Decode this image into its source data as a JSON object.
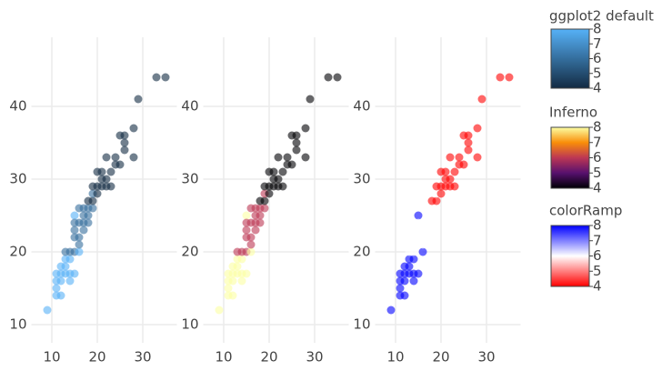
{
  "chart_data": [
    {
      "type": "scatter",
      "clim": [
        4,
        8
      ],
      "x": [
        9,
        11,
        11,
        11,
        12,
        12,
        12,
        13,
        13,
        13,
        14,
        14,
        14,
        15,
        15,
        15,
        15,
        16,
        16,
        16,
        17,
        17,
        17,
        18,
        18,
        18,
        19,
        19,
        19,
        19,
        20,
        20,
        20,
        21,
        21,
        21,
        22,
        22,
        23,
        23,
        24,
        24,
        25,
        26,
        26,
        25,
        28,
        28,
        29,
        33,
        35,
        16,
        15,
        14,
        18,
        17,
        13,
        12,
        11,
        16,
        15,
        22,
        26
      ],
      "y": [
        12,
        15,
        16,
        17,
        17,
        16,
        14,
        17,
        18,
        19,
        19,
        17,
        20,
        20,
        22,
        25,
        24,
        24,
        22,
        26,
        24,
        26,
        23,
        25,
        26,
        27,
        26,
        27,
        28,
        29,
        28,
        29,
        31,
        29,
        30,
        31,
        29,
        30,
        29,
        31,
        32,
        33,
        32,
        35,
        36,
        36,
        37,
        33,
        41,
        44,
        44,
        20,
        17,
        16,
        24,
        25,
        20,
        18,
        14,
        21,
        23,
        33,
        34
      ],
      "color_values": [
        8,
        8,
        8,
        8,
        8,
        8,
        8,
        8,
        8,
        8,
        8,
        8,
        6,
        6,
        6,
        8,
        6,
        6,
        6,
        6,
        6,
        6,
        6,
        6,
        6,
        4,
        6,
        4,
        6,
        4,
        4,
        4,
        4,
        4,
        4,
        4,
        4,
        4,
        4,
        4,
        4,
        4,
        4,
        4,
        4,
        4,
        4,
        4,
        4,
        4,
        4,
        8,
        8,
        8,
        6,
        6,
        6,
        8,
        8,
        6,
        6,
        4,
        4
      ],
      "xlim": [
        5.5,
        37.5
      ],
      "xticks": [
        10,
        20,
        30
      ],
      "ylim": [
        7.5,
        49.5
      ],
      "yticks": [
        10,
        20,
        30,
        40
      ],
      "colorbar": {
        "title": "ggplot2 default",
        "ticks": [
          4,
          5,
          6,
          7,
          8
        ],
        "colors": [
          "#132B43",
          "#56B1F7"
        ]
      }
    },
    {
      "type": "scatter",
      "clim": [
        4,
        8
      ],
      "x": [
        9,
        11,
        11,
        11,
        12,
        12,
        12,
        13,
        13,
        13,
        14,
        14,
        14,
        15,
        15,
        15,
        15,
        16,
        16,
        16,
        17,
        17,
        17,
        18,
        18,
        18,
        19,
        19,
        19,
        19,
        20,
        20,
        20,
        21,
        21,
        21,
        22,
        22,
        23,
        23,
        24,
        24,
        25,
        26,
        26,
        25,
        28,
        28,
        29,
        33,
        35,
        16,
        15,
        14,
        18,
        17,
        13,
        12,
        11,
        16,
        15,
        22,
        26
      ],
      "y": [
        12,
        15,
        16,
        17,
        17,
        16,
        14,
        17,
        18,
        19,
        19,
        17,
        20,
        20,
        22,
        25,
        24,
        24,
        22,
        26,
        24,
        26,
        23,
        25,
        26,
        27,
        26,
        27,
        28,
        29,
        28,
        29,
        31,
        29,
        30,
        31,
        29,
        30,
        29,
        31,
        32,
        33,
        32,
        35,
        36,
        36,
        37,
        33,
        41,
        44,
        44,
        20,
        17,
        16,
        24,
        25,
        20,
        18,
        14,
        21,
        23,
        33,
        34
      ],
      "color_values": [
        8,
        8,
        8,
        8,
        8,
        8,
        8,
        8,
        8,
        8,
        8,
        8,
        6,
        6,
        6,
        8,
        6,
        6,
        6,
        6,
        6,
        6,
        6,
        6,
        6,
        4,
        6,
        4,
        6,
        4,
        4,
        4,
        4,
        4,
        4,
        4,
        4,
        4,
        4,
        4,
        4,
        4,
        4,
        4,
        4,
        4,
        4,
        4,
        4,
        4,
        4,
        8,
        8,
        8,
        6,
        6,
        6,
        8,
        8,
        6,
        6,
        4,
        4
      ],
      "xlim": [
        5.5,
        37.5
      ],
      "xticks": [
        10,
        20,
        30
      ],
      "ylim": [
        7.5,
        49.5
      ],
      "yticks": [
        10,
        20,
        30,
        40
      ],
      "colorbar": {
        "title": "Inferno",
        "ticks": [
          4,
          5,
          6,
          7,
          8
        ],
        "colors": [
          "#000004",
          "#57106E",
          "#BC3754",
          "#F98E09",
          "#FCFFA4"
        ]
      }
    },
    {
      "type": "scatter",
      "clim": [
        4,
        8
      ],
      "x": [
        9,
        11,
        11,
        11,
        12,
        12,
        12,
        13,
        13,
        13,
        14,
        14,
        14,
        15,
        15,
        15,
        15,
        16,
        16,
        16,
        17,
        17,
        17,
        18,
        18,
        18,
        19,
        19,
        19,
        19,
        20,
        20,
        20,
        21,
        21,
        21,
        22,
        22,
        23,
        23,
        24,
        24,
        25,
        26,
        26,
        25,
        28,
        28,
        29,
        33,
        35,
        16,
        15,
        14,
        18,
        17,
        13,
        12,
        11,
        16,
        15,
        22,
        26
      ],
      "y": [
        12,
        15,
        16,
        17,
        17,
        16,
        14,
        17,
        18,
        19,
        19,
        17,
        20,
        20,
        22,
        25,
        24,
        24,
        22,
        26,
        24,
        26,
        23,
        25,
        26,
        27,
        26,
        27,
        28,
        29,
        28,
        29,
        31,
        29,
        30,
        31,
        29,
        30,
        29,
        31,
        32,
        33,
        32,
        35,
        36,
        36,
        37,
        33,
        41,
        44,
        44,
        20,
        17,
        16,
        24,
        25,
        20,
        18,
        14,
        21,
        23,
        33,
        34
      ],
      "color_values": [
        8,
        8,
        8,
        8,
        8,
        8,
        8,
        8,
        8,
        8,
        8,
        8,
        6,
        6,
        6,
        8,
        6,
        6,
        6,
        6,
        6,
        6,
        6,
        6,
        6,
        4,
        6,
        4,
        6,
        4,
        4,
        4,
        4,
        4,
        4,
        4,
        4,
        4,
        4,
        4,
        4,
        4,
        4,
        4,
        4,
        4,
        4,
        4,
        4,
        4,
        4,
        8,
        8,
        8,
        6,
        6,
        6,
        8,
        8,
        6,
        6,
        4,
        4
      ],
      "xlim": [
        5.5,
        37.5
      ],
      "xticks": [
        10,
        20,
        30
      ],
      "ylim": [
        7.5,
        49.5
      ],
      "yticks": [
        10,
        20,
        30,
        40
      ],
      "colorbar": {
        "title": "colorRamp",
        "ticks": [
          4,
          5,
          6,
          7,
          8
        ],
        "colors": [
          "#FF0000",
          "#FFFFFF",
          "#0000FF"
        ]
      }
    }
  ]
}
